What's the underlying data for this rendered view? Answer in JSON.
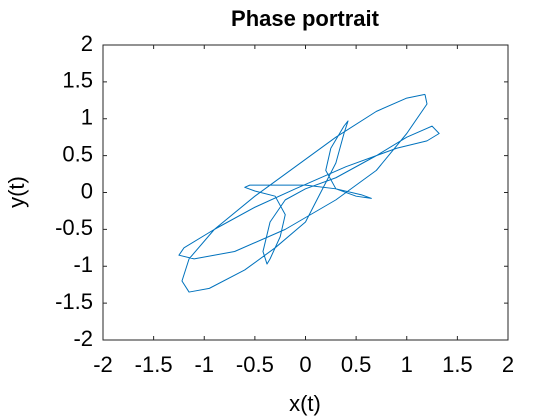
{
  "chart_data": {
    "type": "line",
    "title": "Phase portrait",
    "x_label": "x(t)",
    "y_label": "y(t)",
    "color": "#0072bd",
    "x": [
      1.18,
      1.0,
      0.7,
      0.3,
      -0.1,
      -0.5,
      -0.9,
      -1.15,
      -1.22,
      -1.15,
      -0.95,
      -0.6,
      -0.3,
      0,
      0.15,
      0.3,
      0.38,
      0.42,
      0.38,
      0.25,
      0.2,
      0.3,
      0.5,
      0.65,
      0.55,
      0.3,
      0,
      -0.3,
      -0.55,
      -0.6,
      -0.5,
      -0.3,
      -0.2,
      -0.25,
      -0.35,
      -0.38,
      -0.42,
      -0.35,
      -0.2,
      0,
      0.3,
      0.7,
      1.0,
      1.25,
      1.32,
      1.2,
      0.9,
      0.4,
      -0.1,
      -0.5,
      -0.9,
      -1.2,
      -1.25,
      -1.1,
      -0.7,
      -0.2,
      0.3,
      0.7,
      1.0,
      1.2,
      1.18
    ],
    "values": [
      1.33,
      1.28,
      1.1,
      0.75,
      0.35,
      -0.05,
      -0.5,
      -0.9,
      -1.2,
      -1.35,
      -1.3,
      -1.05,
      -0.75,
      -0.4,
      0,
      0.4,
      0.8,
      0.97,
      0.9,
      0.6,
      0.3,
      0.05,
      -0.05,
      -0.08,
      -0.03,
      0.05,
      0.1,
      0.1,
      0.1,
      0.07,
      0.02,
      -0.05,
      -0.3,
      -0.6,
      -0.9,
      -0.97,
      -0.8,
      -0.4,
      -0.1,
      0.05,
      0.2,
      0.5,
      0.75,
      0.9,
      0.8,
      0.7,
      0.6,
      0.35,
      0.05,
      -0.2,
      -0.5,
      -0.75,
      -0.85,
      -0.9,
      -0.8,
      -0.5,
      -0.1,
      0.3,
      0.8,
      1.2,
      1.33
    ],
    "xlim": [
      -2,
      2
    ],
    "ylim": [
      -2,
      2
    ],
    "xticks": [
      -2,
      -1.5,
      -1,
      -0.5,
      0,
      0.5,
      1,
      1.5,
      2
    ],
    "yticks": [
      -2,
      -1.5,
      -1,
      -0.5,
      0,
      0.5,
      1,
      1.5,
      2
    ],
    "grid": false
  }
}
